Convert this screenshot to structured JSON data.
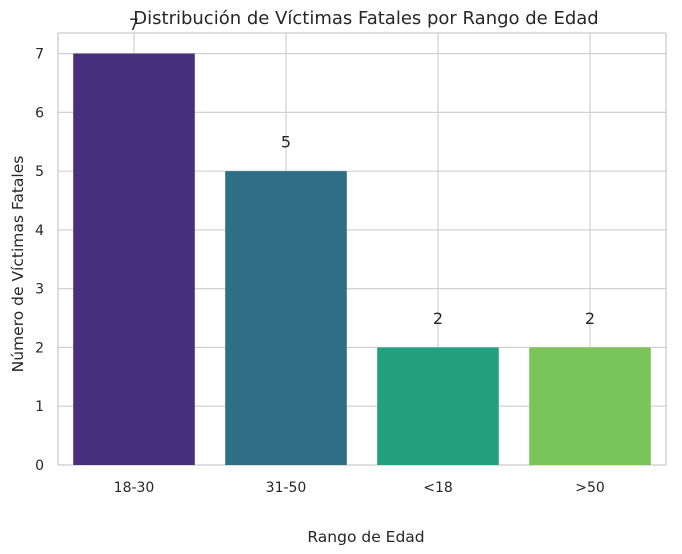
{
  "chart_data": {
    "type": "bar",
    "title": "Distribución de Víctimas Fatales por Rango de Edad",
    "xlabel": "Rango de Edad",
    "ylabel": "Número de Víctimas Fatales",
    "categories": [
      "18-30",
      "31-50",
      "<18",
      ">50"
    ],
    "values": [
      7,
      5,
      2,
      2
    ],
    "data_labels": [
      "7",
      "5",
      "2",
      "2"
    ],
    "yticks": [
      "0",
      "1",
      "2",
      "3",
      "4",
      "5",
      "6",
      "7"
    ],
    "ylim": [
      0,
      7.35
    ],
    "grid": true,
    "legend": "none",
    "colors": [
      "#472f7d",
      "#2e6f86",
      "#23a17e",
      "#7ac55a"
    ]
  }
}
